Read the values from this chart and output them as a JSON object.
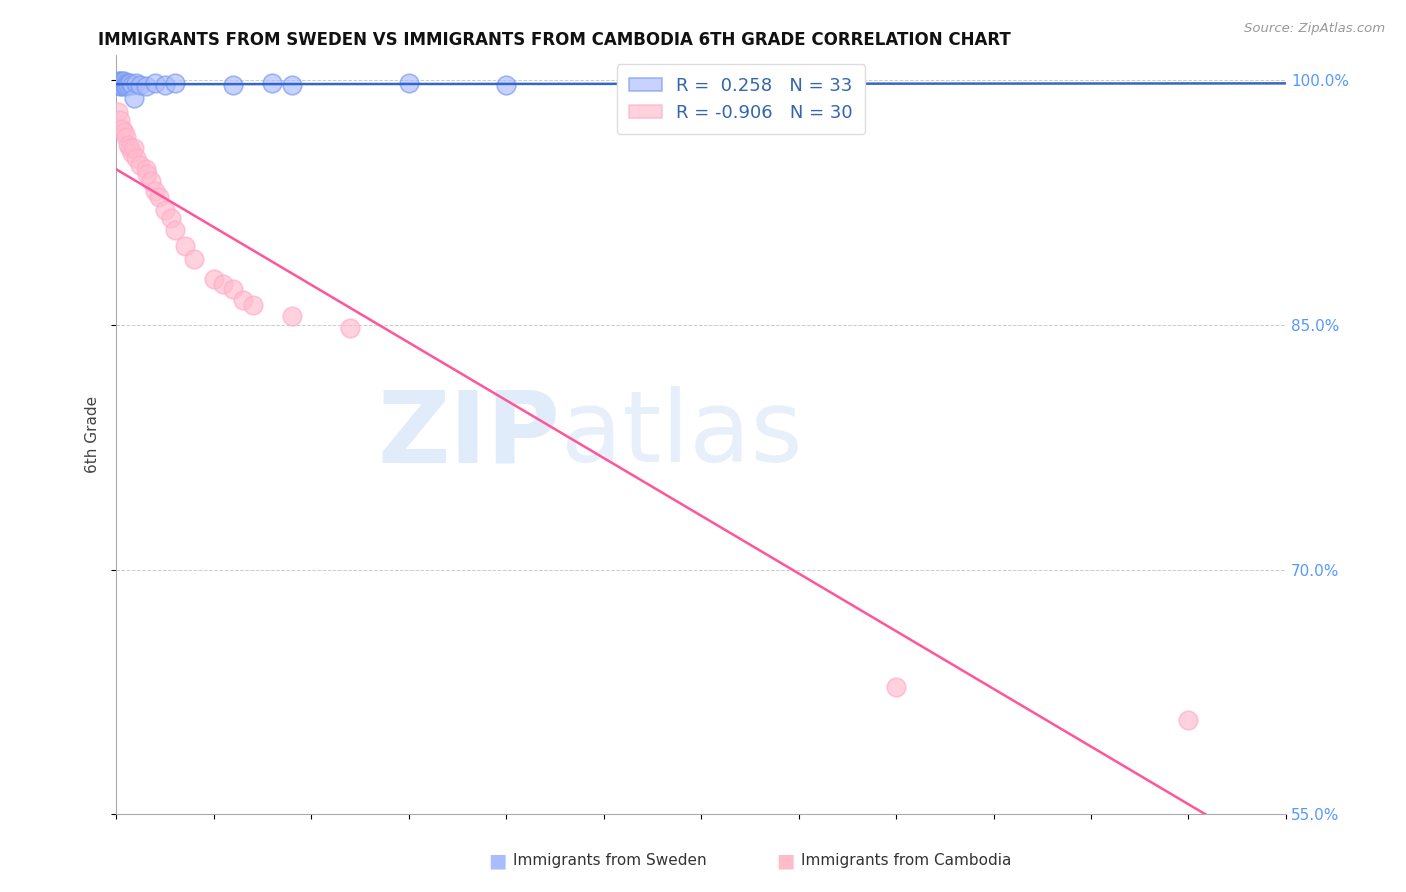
{
  "title": "IMMIGRANTS FROM SWEDEN VS IMMIGRANTS FROM CAMBODIA 6TH GRADE CORRELATION CHART",
  "source": "Source: ZipAtlas.com",
  "ylabel": "6th Grade",
  "right_ytick_vals": [
    1.0,
    0.85,
    0.7,
    0.55
  ],
  "right_ytick_labels": [
    "100.0%",
    "85.0%",
    "70.0%",
    "55.0%"
  ],
  "watermark_part1": "ZIP",
  "watermark_part2": "atlas",
  "xlim": [
    0.0,
    0.6
  ],
  "ylim": [
    0.575,
    1.015
  ],
  "grid_color": "#cccccc",
  "background_color": "#ffffff",
  "title_color": "#111111",
  "right_axis_color": "#5599ff",
  "sweden_face_color": "#aabbff",
  "sweden_edge_color": "#7799ee",
  "cambodia_face_color": "#ffbbcc",
  "cambodia_edge_color": "#ffaacc",
  "sweden_line_color": "#3366cc",
  "cambodia_line_color": "#ff5599",
  "sweden_label": "R =  0.258   N = 33",
  "cambodia_label": "R = -0.906   N = 30",
  "legend_r_color": "#3366cc",
  "legend_n_color": "#3399ff",
  "bottom_legend_sweden": "Immigrants from Sweden",
  "bottom_legend_cambodia": "Immigrants from Cambodia",
  "sweden_x": [
    0.001,
    0.001,
    0.001,
    0.002,
    0.002,
    0.002,
    0.002,
    0.003,
    0.003,
    0.003,
    0.003,
    0.004,
    0.004,
    0.004,
    0.005,
    0.005,
    0.005,
    0.006,
    0.006,
    0.007,
    0.008,
    0.009,
    0.01,
    0.012,
    0.015,
    0.02,
    0.025,
    0.03,
    0.06,
    0.08,
    0.09,
    0.15,
    0.2
  ],
  "sweden_y": [
    0.998,
    0.999,
    0.997,
    0.998,
    0.997,
    0.996,
    0.999,
    0.998,
    0.997,
    0.999,
    0.996,
    0.998,
    0.997,
    0.999,
    0.997,
    0.998,
    0.996,
    0.998,
    0.997,
    0.998,
    0.997,
    0.989,
    0.998,
    0.997,
    0.996,
    0.998,
    0.997,
    0.998,
    0.997,
    0.998,
    0.997,
    0.998,
    0.997
  ],
  "cambodia_x": [
    0.001,
    0.002,
    0.003,
    0.004,
    0.005,
    0.006,
    0.007,
    0.008,
    0.009,
    0.01,
    0.012,
    0.015,
    0.016,
    0.018,
    0.02,
    0.022,
    0.025,
    0.028,
    0.03,
    0.035,
    0.04,
    0.05,
    0.055,
    0.06,
    0.065,
    0.07,
    0.09,
    0.12,
    0.4,
    0.55
  ],
  "cambodia_y": [
    0.98,
    0.975,
    0.97,
    0.968,
    0.965,
    0.96,
    0.958,
    0.955,
    0.958,
    0.952,
    0.948,
    0.945,
    0.942,
    0.938,
    0.932,
    0.928,
    0.92,
    0.915,
    0.908,
    0.898,
    0.89,
    0.878,
    0.875,
    0.872,
    0.865,
    0.862,
    0.855,
    0.848,
    0.628,
    0.608
  ]
}
